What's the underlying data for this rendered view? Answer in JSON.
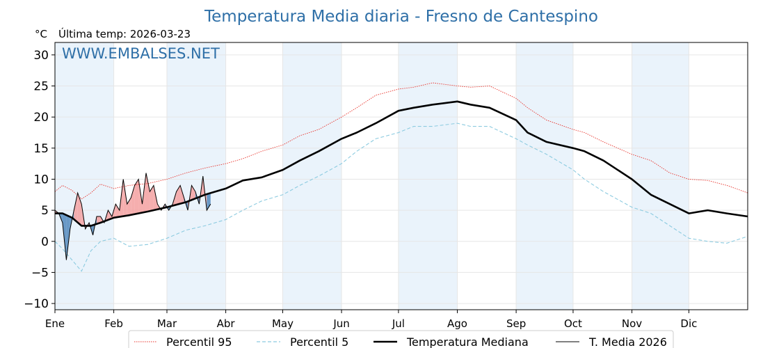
{
  "chart_data": {
    "type": "line",
    "title": "Temperatura Media diaria - Fresno de Cantespino",
    "unit_label": "°C",
    "last_update": "Última temp: 2026-03-23",
    "watermark": "WWW.EMBALSES.NET",
    "ylim": [
      -11,
      32
    ],
    "yticks": [
      -10,
      -5,
      0,
      5,
      10,
      15,
      20,
      25,
      30
    ],
    "xlim": [
      1,
      366
    ],
    "months": [
      {
        "label": "Ene",
        "start": 1
      },
      {
        "label": "Feb",
        "start": 32
      },
      {
        "label": "Mar",
        "start": 60
      },
      {
        "label": "Abr",
        "start": 91
      },
      {
        "label": "May",
        "start": 121
      },
      {
        "label": "Jun",
        "start": 152
      },
      {
        "label": "Jul",
        "start": 182
      },
      {
        "label": "Ago",
        "start": 213
      },
      {
        "label": "Sep",
        "start": 244
      },
      {
        "label": "Oct",
        "start": 274
      },
      {
        "label": "Nov",
        "start": 305
      },
      {
        "label": "Dic",
        "start": 335
      }
    ],
    "grid": true,
    "legend_position": "bottom",
    "colors": {
      "p95": "#e8322a",
      "p5": "#8ccbe0",
      "median": "#000000",
      "current": "#000000",
      "above_fill": "#f4a5a5",
      "below_fill": "#5b8fc0",
      "band": "#eaf3fb",
      "title": "#2e6fa7"
    },
    "series": [
      {
        "name": "Percentil 95",
        "style": "dotted-red",
        "x": [
          1,
          5,
          10,
          15,
          20,
          25,
          32,
          40,
          50,
          60,
          70,
          80,
          91,
          100,
          110,
          121,
          130,
          140,
          152,
          160,
          170,
          182,
          190,
          200,
          213,
          220,
          230,
          244,
          250,
          260,
          274,
          280,
          290,
          305,
          315,
          325,
          335,
          345,
          355,
          366
        ],
        "y": [
          8,
          9,
          8.2,
          6.8,
          7.8,
          9.2,
          8.5,
          9,
          9.3,
          10,
          11,
          11.8,
          12.5,
          13.3,
          14.5,
          15.5,
          17,
          18,
          20,
          21.5,
          23.5,
          24.5,
          24.8,
          25.5,
          25,
          24.8,
          25,
          23,
          21.5,
          19.5,
          18,
          17.5,
          16,
          14,
          13,
          11,
          10,
          9.8,
          9,
          7.8
        ]
      },
      {
        "name": "Percentil 5",
        "style": "dashed-lightblue",
        "x": [
          1,
          5,
          10,
          15,
          20,
          25,
          32,
          40,
          50,
          60,
          70,
          80,
          91,
          100,
          110,
          121,
          130,
          140,
          152,
          160,
          170,
          182,
          190,
          200,
          213,
          220,
          230,
          244,
          250,
          260,
          274,
          280,
          290,
          305,
          315,
          325,
          335,
          345,
          355,
          366
        ],
        "y": [
          0,
          -1.2,
          -3,
          -4.8,
          -1.5,
          0,
          0.5,
          -0.8,
          -0.5,
          0.5,
          1.8,
          2.5,
          3.5,
          5,
          6.5,
          7.5,
          9,
          10.5,
          12.5,
          14.5,
          16.5,
          17.5,
          18.5,
          18.5,
          19,
          18.5,
          18.5,
          16.5,
          15.5,
          14,
          11.5,
          10,
          8,
          5.5,
          4.5,
          2.5,
          0.5,
          0,
          -0.3,
          0.8
        ]
      },
      {
        "name": "Temperatura Mediana",
        "style": "thick-black",
        "x": [
          1,
          5,
          10,
          15,
          20,
          25,
          32,
          40,
          50,
          60,
          70,
          80,
          91,
          100,
          110,
          121,
          130,
          140,
          152,
          160,
          170,
          182,
          190,
          200,
          213,
          220,
          230,
          244,
          250,
          260,
          274,
          280,
          290,
          305,
          315,
          325,
          335,
          345,
          355,
          366
        ],
        "y": [
          4.5,
          4.5,
          3.8,
          2.5,
          2.5,
          3,
          3.8,
          4.2,
          4.8,
          5.5,
          6.3,
          7.5,
          8.5,
          9.8,
          10.3,
          11.5,
          13,
          14.5,
          16.5,
          17.5,
          19,
          21,
          21.5,
          22,
          22.5,
          22,
          21.5,
          19.5,
          17.5,
          16,
          15,
          14.5,
          13,
          10,
          7.5,
          6,
          4.5,
          5,
          4.5,
          4
        ]
      },
      {
        "name": "T. Media 2026",
        "style": "thin-black",
        "x": [
          1,
          3,
          5,
          7,
          9,
          11,
          13,
          15,
          17,
          19,
          21,
          23,
          25,
          27,
          29,
          31,
          33,
          35,
          37,
          39,
          41,
          43,
          45,
          47,
          49,
          51,
          53,
          55,
          57,
          59,
          61,
          63,
          65,
          67,
          69,
          71,
          73,
          75,
          77,
          79,
          81,
          83
        ],
        "y": [
          5,
          4.5,
          3,
          -3,
          2,
          5,
          7.8,
          6,
          2,
          3,
          1,
          4,
          4,
          3,
          5,
          4,
          6,
          5,
          10,
          6,
          7,
          9,
          10,
          6,
          11,
          8,
          9,
          6,
          5,
          6,
          5,
          6,
          8,
          9,
          7,
          5,
          9,
          8,
          6,
          10.5,
          5,
          6
        ]
      }
    ]
  }
}
